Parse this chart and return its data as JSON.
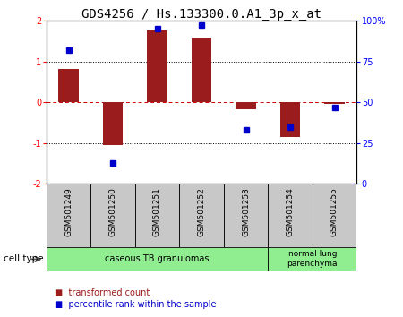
{
  "title": "GDS4256 / Hs.133300.0.A1_3p_x_at",
  "samples": [
    "GSM501249",
    "GSM501250",
    "GSM501251",
    "GSM501252",
    "GSM501253",
    "GSM501254",
    "GSM501255"
  ],
  "transformed_counts": [
    0.82,
    -1.05,
    1.75,
    1.58,
    -0.18,
    -0.85,
    -0.03
  ],
  "percentile_ranks": [
    82,
    13,
    95,
    97,
    33,
    35,
    47
  ],
  "ylim_left": [
    -2,
    2
  ],
  "ylim_right": [
    0,
    100
  ],
  "bar_color": "#9B1C1C",
  "dot_color": "#0000CC",
  "dotted_lines": [
    1.0,
    -1.0
  ],
  "group1_label": "caseous TB granulomas",
  "group2_label": "normal lung\nparenchyma",
  "group_color": "#90EE90",
  "sample_box_color": "#C8C8C8",
  "cell_type_label": "cell type",
  "legend_items": [
    {
      "label": "transformed count",
      "color": "#9B1C1C"
    },
    {
      "label": "percentile rank within the sample",
      "color": "#0000CC"
    }
  ],
  "title_fontsize": 10,
  "tick_fontsize": 7,
  "sample_fontsize": 6.5,
  "group_fontsize": 7,
  "legend_fontsize": 7
}
